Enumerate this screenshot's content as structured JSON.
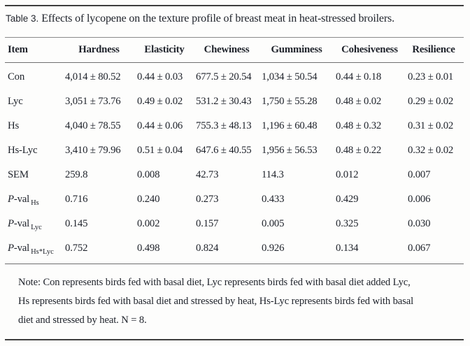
{
  "title": {
    "label": "Table 3.",
    "caption": "Effects of lycopene on the texture profile of breast meat in heat-stressed broilers."
  },
  "table": {
    "columns": [
      "Item",
      "Hardness",
      "Elasticity",
      "Chewiness",
      "Gumminess",
      "Cohesiveness",
      "Resilience"
    ],
    "rows": [
      {
        "item_italic": "",
        "item_label": "Con",
        "item_sub": "",
        "values": [
          "4,014 ± 80.52",
          "0.44 ± 0.03",
          "677.5 ± 20.54",
          "1,034 ± 50.54",
          "0.44 ± 0.18",
          "0.23 ± 0.01"
        ]
      },
      {
        "item_italic": "",
        "item_label": "Lyc",
        "item_sub": "",
        "values": [
          "3,051 ± 73.76",
          "0.49 ± 0.02",
          "531.2 ± 30.43",
          "1,750 ± 55.28",
          "0.48 ± 0.02",
          "0.29 ± 0.02"
        ]
      },
      {
        "item_italic": "",
        "item_label": "Hs",
        "item_sub": "",
        "values": [
          "4,040 ± 78.55",
          "0.44 ± 0.06",
          "755.3 ± 48.13",
          "1,196 ± 60.48",
          "0.48 ± 0.32",
          "0.31 ± 0.02"
        ]
      },
      {
        "item_italic": "",
        "item_label": "Hs-Lyc",
        "item_sub": "",
        "values": [
          "3,410 ± 79.96",
          "0.51 ± 0.04",
          "647.6 ± 40.55",
          "1,956 ± 56.53",
          "0.48 ± 0.22",
          "0.32 ± 0.02"
        ]
      },
      {
        "item_italic": "",
        "item_label": "SEM",
        "item_sub": "",
        "values": [
          "259.8",
          "0.008",
          "42.73",
          "114.3",
          "0.012",
          "0.007"
        ]
      },
      {
        "item_italic": "P",
        "item_label": "-val",
        "item_sub": "Hs",
        "values": [
          "0.716",
          "0.240",
          "0.273",
          "0.433",
          "0.429",
          "0.006"
        ]
      },
      {
        "item_italic": "P",
        "item_label": "-val",
        "item_sub": "Lyc",
        "values": [
          "0.145",
          "0.002",
          "0.157",
          "0.005",
          "0.325",
          "0.030"
        ]
      },
      {
        "item_italic": "P",
        "item_label": "-val",
        "item_sub": "Hs*Lyc",
        "values": [
          "0.752",
          "0.498",
          "0.824",
          "0.926",
          "0.134",
          "0.067"
        ]
      }
    ]
  },
  "note": {
    "lines": [
      "Note: Con represents birds fed with basal diet, Lyc represents birds fed with basal diet added Lyc,",
      "Hs represents birds fed with basal diet and stressed by heat, Hs-Lyc represents birds fed with basal",
      "diet and stressed by heat. N = 8."
    ]
  },
  "colors": {
    "text": "#20242c",
    "rule_heavy": "#3e3e3e",
    "rule_light": "#8a8a8a",
    "background": "#fdfdfc"
  }
}
